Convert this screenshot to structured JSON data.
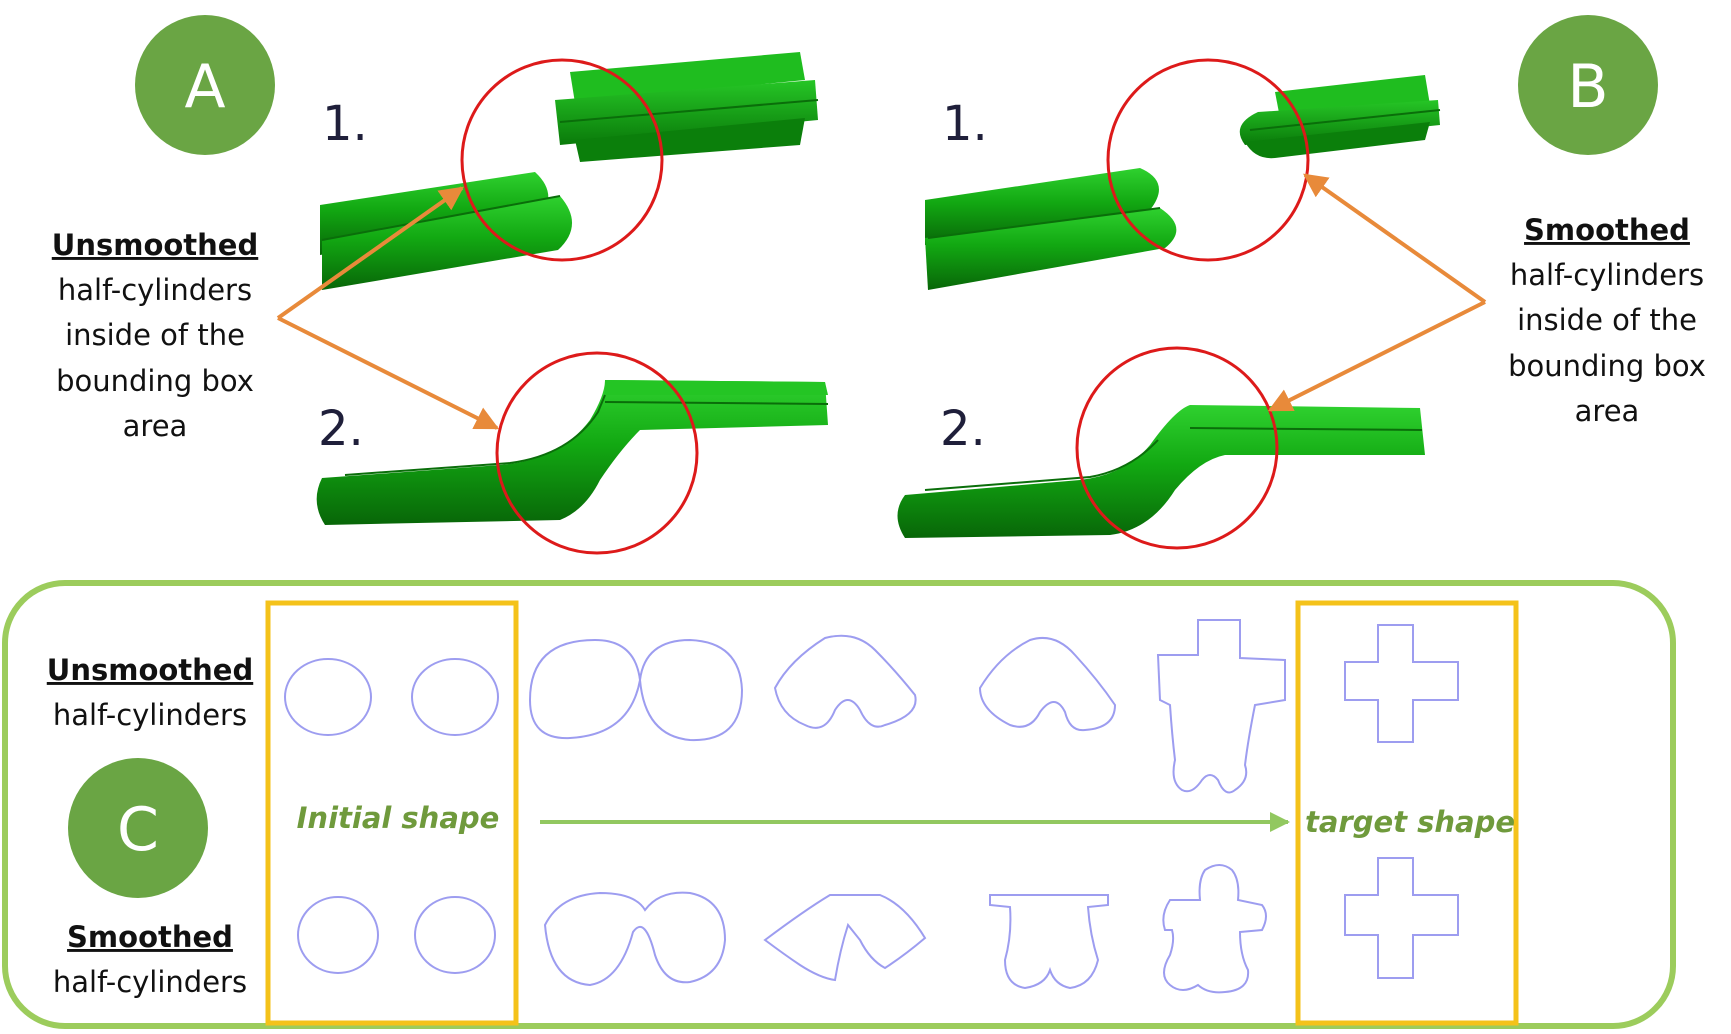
{
  "panels": {
    "a": "A",
    "b": "B",
    "c": "C"
  },
  "steps": {
    "one": "1.",
    "two": "2."
  },
  "panel_a": {
    "title": "Unsmoothed",
    "lines": [
      "half-cylinders",
      "inside of the",
      "bounding box",
      "area"
    ]
  },
  "panel_b": {
    "title": "Smoothed",
    "lines": [
      "half-cylinders",
      "inside of the",
      "bounding box",
      "area"
    ]
  },
  "panel_c": {
    "row_top_title": "Unsmoothed",
    "row_top_sub": "half-cylinders",
    "row_bottom_title": "Smoothed",
    "row_bottom_sub": "half-cylinders",
    "initial_label": "Initial shape",
    "target_label": "target shape"
  },
  "colors": {
    "badge": "#6aa544",
    "tube": "#11a611",
    "tube_dark": "#0a6e0a",
    "highlight_circle": "#dd1a1a",
    "pointer_arrow": "#e88a3a",
    "frame": "#9ccc5c",
    "box": "#f4c21a",
    "outline": "#9d9df0",
    "progress_arrow": "#92c860"
  }
}
